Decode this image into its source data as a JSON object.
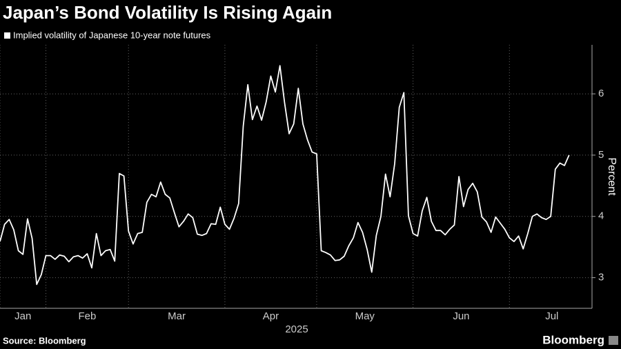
{
  "chart_data": {
    "type": "line",
    "title": "Japan’s Bond Volatility Is Rising Again",
    "source": "Source: Bloomberg",
    "brand": "Bloomberg",
    "xlabel": "2025",
    "ylabel": "Percent",
    "series": [
      {
        "name": "Implied volatility of Japanese 10-year note futures",
        "color": "#ffffff",
        "values": [
          3.59,
          3.87,
          3.95,
          3.78,
          3.44,
          3.38,
          3.96,
          3.64,
          2.89,
          3.05,
          3.36,
          3.36,
          3.3,
          3.37,
          3.35,
          3.26,
          3.34,
          3.36,
          3.32,
          3.39,
          3.16,
          3.72,
          3.36,
          3.44,
          3.46,
          3.27,
          4.7,
          4.66,
          3.76,
          3.55,
          3.72,
          3.74,
          4.23,
          4.36,
          4.32,
          4.56,
          4.36,
          4.3,
          4.06,
          3.83,
          3.92,
          4.04,
          3.98,
          3.71,
          3.69,
          3.72,
          3.88,
          3.87,
          4.15,
          3.87,
          3.79,
          3.97,
          4.21,
          5.47,
          6.15,
          5.58,
          5.8,
          5.57,
          5.87,
          6.29,
          6.03,
          6.46,
          5.86,
          5.35,
          5.51,
          6.09,
          5.51,
          5.25,
          5.05,
          5.02,
          3.44,
          3.41,
          3.37,
          3.28,
          3.29,
          3.35,
          3.52,
          3.65,
          3.9,
          3.74,
          3.46,
          3.09,
          3.69,
          4.0,
          4.69,
          4.32,
          4.86,
          5.78,
          6.02,
          4.01,
          3.72,
          3.68,
          4.09,
          4.31,
          3.92,
          3.77,
          3.77,
          3.7,
          3.79,
          3.86,
          4.65,
          4.16,
          4.44,
          4.54,
          4.4,
          3.99,
          3.91,
          3.74,
          3.99,
          3.89,
          3.79,
          3.65,
          3.59,
          3.68,
          3.47,
          3.72,
          4.0,
          4.04,
          3.98,
          3.95,
          4.0,
          4.77,
          4.87,
          4.83,
          5.0
        ]
      }
    ],
    "xlim": [
      0,
      129
    ],
    "xticks": [
      {
        "value": 0,
        "label": "Jan"
      },
      {
        "value": 10,
        "label": "Feb"
      },
      {
        "value": 28,
        "label": "Mar"
      },
      {
        "value": 49,
        "label": "Apr"
      },
      {
        "value": 69,
        "label": "May"
      },
      {
        "value": 90,
        "label": "Jun"
      },
      {
        "value": 111,
        "label": "Jul"
      }
    ],
    "ylim": [
      2.5,
      6.8
    ],
    "yticks": [
      3,
      4,
      5,
      6
    ],
    "grid": true
  }
}
